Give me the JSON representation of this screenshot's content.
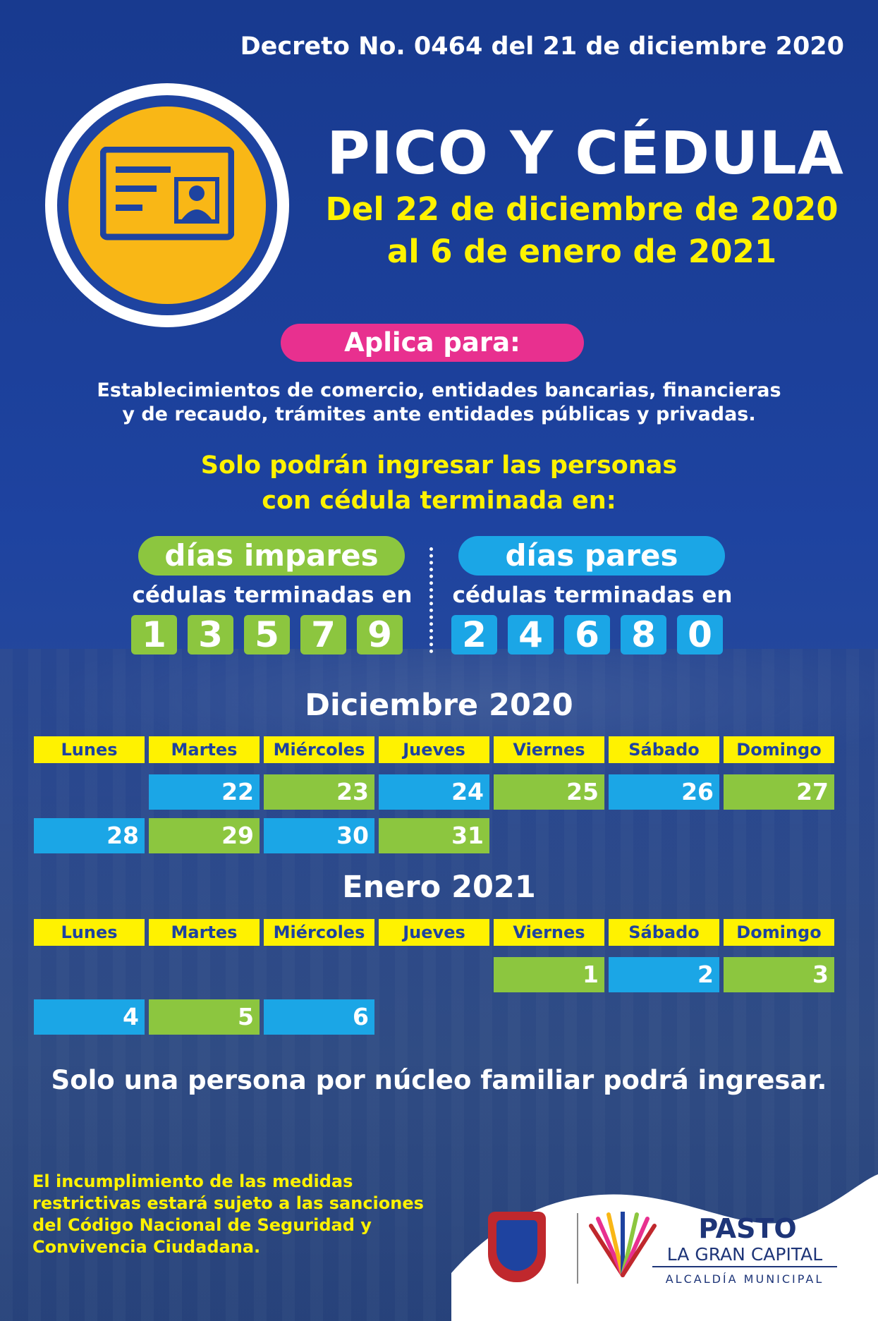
{
  "decree": "Decreto No. 0464 del 21 de diciembre 2020",
  "title": "PICO Y CÉDULA",
  "subtitle_line1": "Del 22 de diciembre de 2020",
  "subtitle_line2": "al 6 de enero de 2021",
  "applies_label": "Aplica para:",
  "applies_line1": "Establecimientos de comercio, entidades  bancarias, financieras",
  "applies_line2": "y de recaudo, trámites ante entidades públicas y privadas.",
  "only_line1": "Solo podrán ingresar las personas",
  "only_line2": "con cédula terminada en:",
  "odd": {
    "label": "días impares",
    "ends": "cédulas terminadas en",
    "digits": [
      "1",
      "3",
      "5",
      "7",
      "9"
    ]
  },
  "even": {
    "label": "días pares",
    "ends": "cédulas terminadas en",
    "digits": [
      "2",
      "4",
      "6",
      "8",
      "0"
    ]
  },
  "weekdays": [
    "Lunes",
    "Martes",
    "Miércoles",
    "Jueves",
    "Viernes",
    "Sábado",
    "Domingo"
  ],
  "december": {
    "title": "Diciembre 2020",
    "row1": [
      "",
      "22",
      "23",
      "24",
      "25",
      "26",
      "27"
    ],
    "row2": [
      "28",
      "29",
      "30",
      "31",
      "",
      "",
      ""
    ]
  },
  "january": {
    "title": "Enero 2021",
    "row1": [
      "",
      "",
      "",
      "",
      "1",
      "2",
      "3"
    ],
    "row2": [
      "4",
      "5",
      "6",
      "",
      "",
      "",
      ""
    ]
  },
  "footer_note": "Solo una persona por núcleo familiar podrá ingresar.",
  "legal_line1": "El incumplimiento de las medidas",
  "legal_line2": "restrictivas estará sujeto a las sanciones",
  "legal_line3": "del Código Nacional de Seguridad y",
  "legal_line4": "Convivencia Ciudadana.",
  "logo": {
    "name": "PASTO",
    "tagline": "LA GRAN CAPITAL",
    "office": "ALCALDÍA MUNICIPAL"
  },
  "colors": {
    "background": "#1e43a0",
    "yellow": "#fff200",
    "green": "#8cc63f",
    "blue": "#1ba6e6",
    "pink": "#e8308f",
    "gold": "#f9b716"
  }
}
